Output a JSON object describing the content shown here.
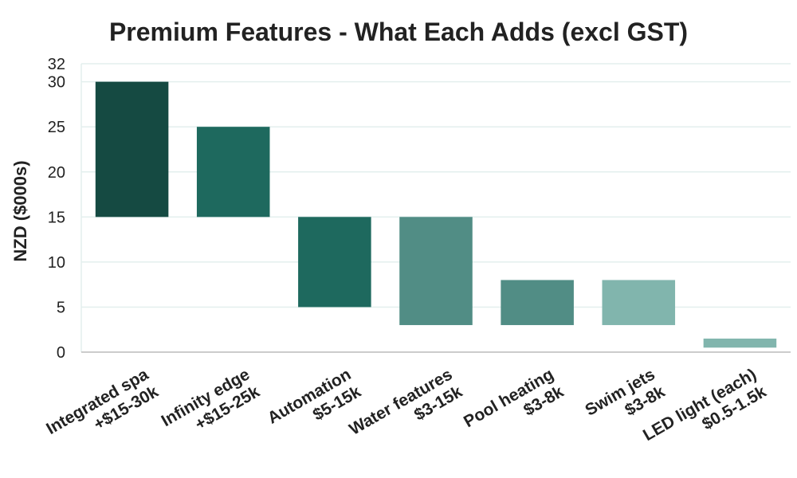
{
  "chart_data": {
    "type": "bar",
    "subtype": "floating-range",
    "title": "Premium Features - What Each Adds (excl GST)",
    "xlabel": "",
    "ylabel": "NZD ($000s)",
    "ylim": [
      0,
      32
    ],
    "yticks": [
      0,
      5,
      10,
      15,
      20,
      25,
      30,
      32
    ],
    "grid": true,
    "legend": "none",
    "categories": [
      [
        "Integrated spa",
        "+$15-30k"
      ],
      [
        "Infinity edge",
        "+$15-25k"
      ],
      [
        "Automation",
        "$5-15k"
      ],
      [
        "Water features",
        "$3-15k"
      ],
      [
        "Pool heating",
        "$3-8k"
      ],
      [
        "Swim jets",
        "$3-8k"
      ],
      [
        "LED light (each)",
        "$0.5-1.5k"
      ]
    ],
    "ranges": [
      [
        15,
        30
      ],
      [
        15,
        25
      ],
      [
        5,
        15
      ],
      [
        3,
        15
      ],
      [
        3,
        8
      ],
      [
        3,
        8
      ],
      [
        0.5,
        1.5
      ]
    ],
    "colors": [
      "#154a42",
      "#1e695e",
      "#1e695e",
      "#518d85",
      "#518d85",
      "#81b5ad",
      "#81b5ad"
    ],
    "grid_color": "#e3efee",
    "axis_color": "#bbbbbb"
  }
}
